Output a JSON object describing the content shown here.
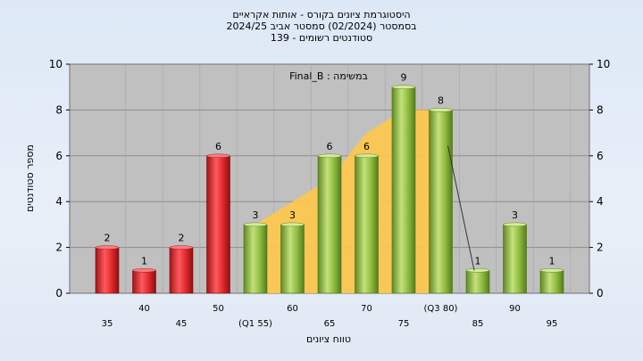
{
  "title": {
    "line1": "היסטוגרמת ציונים בקורס - אותות אקראיים",
    "line2": "בסמסטר  (02/2024)  סמסטר אביב 2024/25",
    "line3": "סטודנטים רשומים - 139"
  },
  "annotation": "במשימה : Final_B",
  "chart_data": {
    "type": "bar",
    "title": "היסטוגרמת ציונים בקורס - אותות אקראיים",
    "xlabel": "טווח ציונים",
    "ylabel": "מספר סטודנטים",
    "ylim": [
      0,
      10
    ],
    "yticks": [
      0,
      2,
      4,
      6,
      8,
      10
    ],
    "grid": true,
    "categories": [
      "35",
      "40",
      "45",
      "50",
      "(Q1 55)",
      "60",
      "65",
      "70",
      "75",
      "(Q3 80)",
      "85",
      "90",
      "95"
    ],
    "values": [
      2,
      1,
      2,
      6,
      3,
      3,
      6,
      6,
      9,
      8,
      1,
      3,
      1
    ],
    "bar_colors": [
      "#e0282c",
      "#e0282c",
      "#e0282c",
      "#e0282c",
      "#8dbb3f",
      "#8dbb3f",
      "#8dbb3f",
      "#8dbb3f",
      "#8dbb3f",
      "#8dbb3f",
      "#8dbb3f",
      "#8dbb3f",
      "#8dbb3f"
    ],
    "area": {
      "start_index": 4,
      "end_index": 9,
      "values": [
        3,
        4,
        5,
        7,
        8,
        8
      ],
      "color": "#ffc84a"
    },
    "trend_line": {
      "from_index": 9,
      "to_index": 10,
      "from_value": 8,
      "to_value": 1,
      "color": "#333333"
    }
  }
}
